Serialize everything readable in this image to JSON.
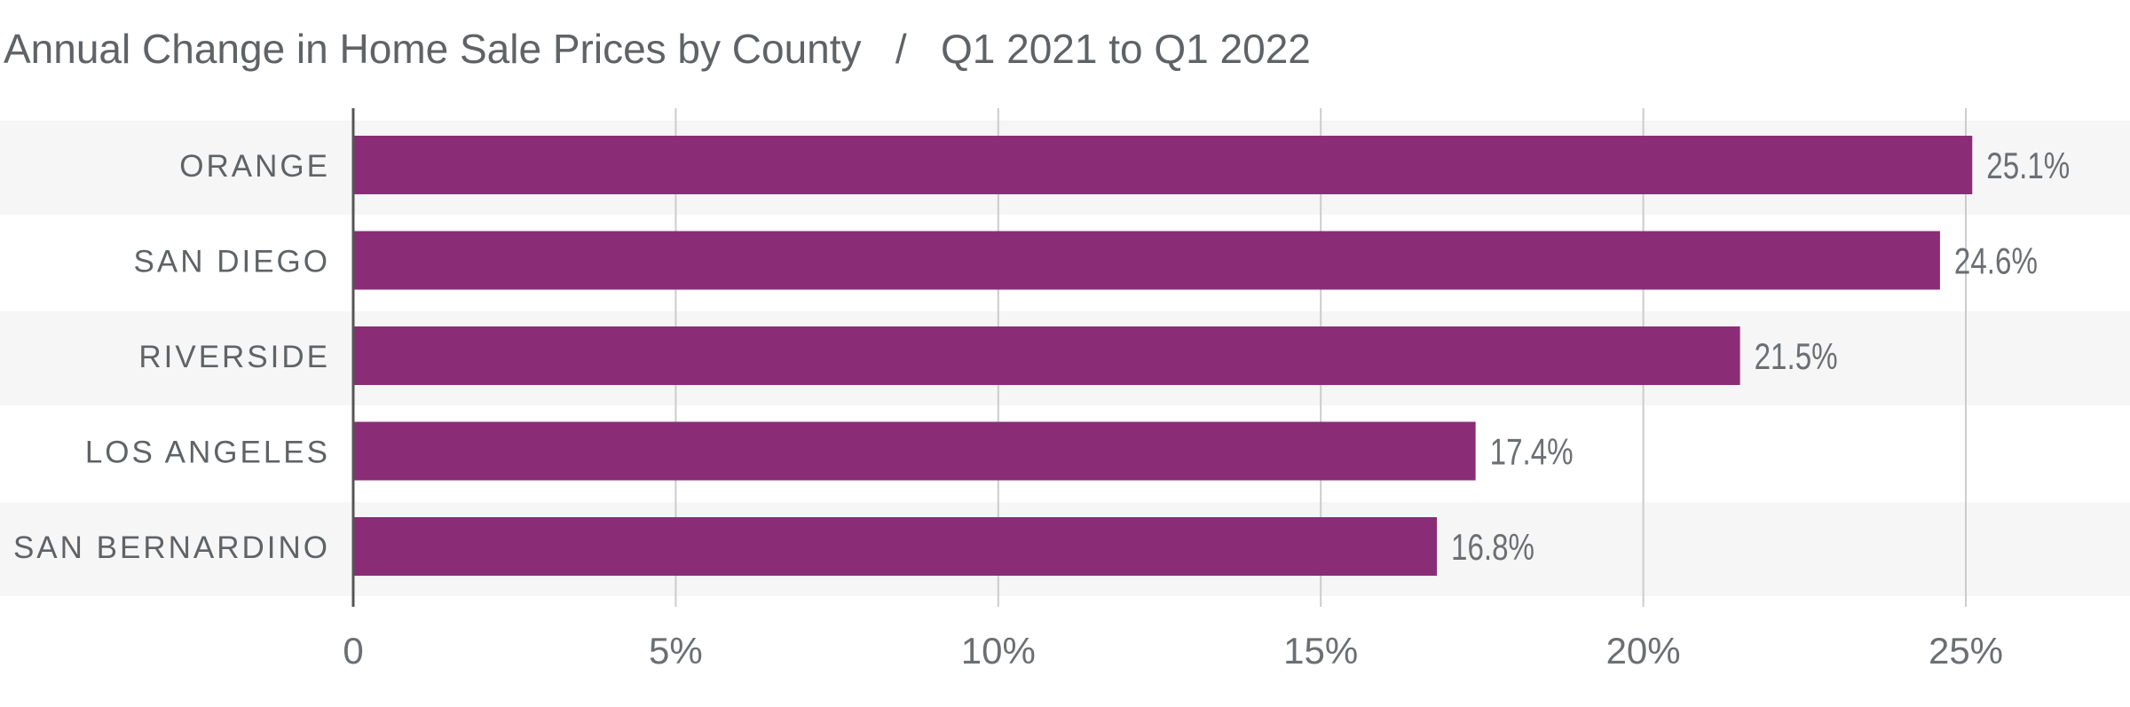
{
  "chart_data": {
    "type": "bar",
    "orientation": "horizontal",
    "title": "Annual Change in Home Sale Prices by County   /   Q1 2021 to Q1 2022",
    "categories": [
      "ORANGE",
      "SAN DIEGO",
      "RIVERSIDE",
      "LOS ANGELES",
      "SAN BERNARDINO"
    ],
    "values": [
      25.1,
      24.6,
      21.5,
      17.4,
      16.8
    ],
    "value_labels": [
      "25.1%",
      "24.6%",
      "21.5%",
      "17.4%",
      "16.8%"
    ],
    "xlim": [
      0,
      27.7
    ],
    "xticks": [
      0,
      5,
      10,
      15,
      20,
      25
    ],
    "xtick_labels": [
      "0",
      "5%",
      "10%",
      "15%",
      "20%",
      "25%"
    ],
    "xlabel": "",
    "ylabel": "",
    "grid": true,
    "colors": {
      "bar": "#8b2c77",
      "band": "#f6f6f6",
      "grid": "#cccccc",
      "axis": "#555555"
    }
  }
}
